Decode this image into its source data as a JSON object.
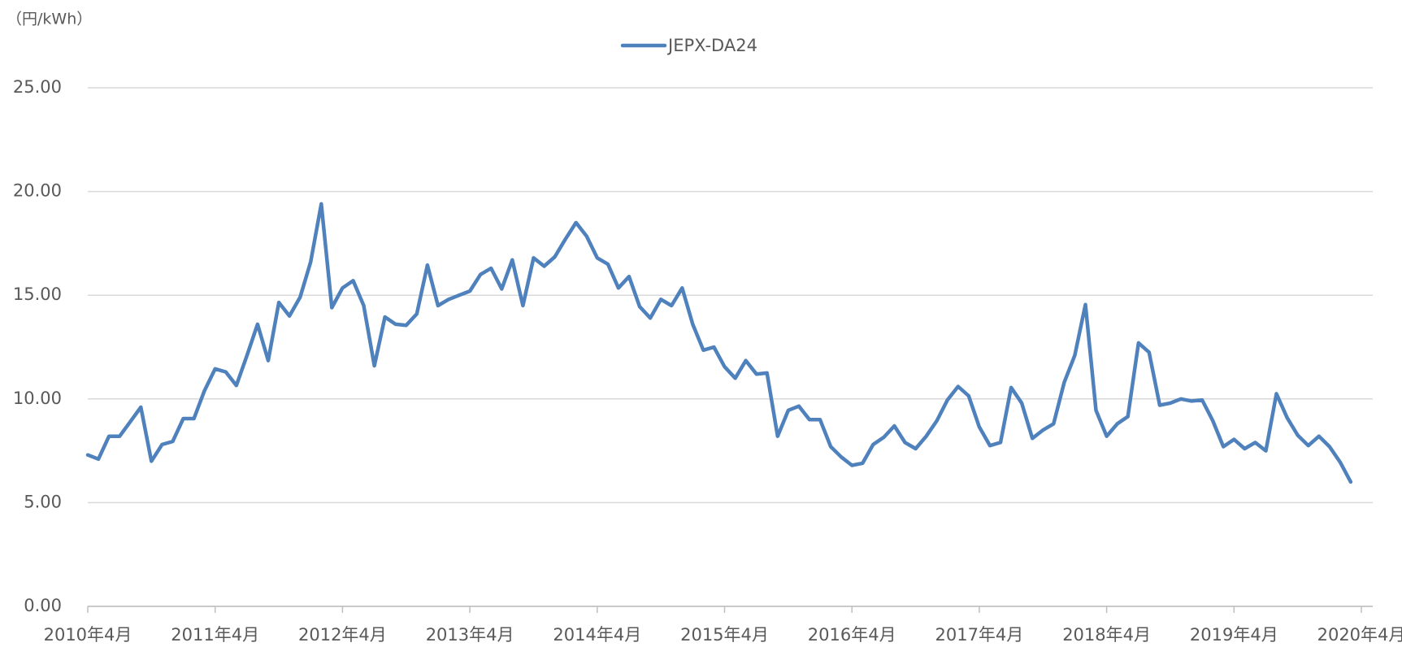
{
  "chart_data": {
    "type": "line",
    "unit_label": "（円/kWh）",
    "categories": [
      "2010年4月",
      null,
      null,
      null,
      null,
      null,
      null,
      null,
      null,
      null,
      null,
      null,
      "2011年4月",
      null,
      null,
      null,
      null,
      null,
      null,
      null,
      null,
      null,
      null,
      null,
      "2012年4月",
      null,
      null,
      null,
      null,
      null,
      null,
      null,
      null,
      null,
      null,
      null,
      "2013年4月",
      null,
      null,
      null,
      null,
      null,
      null,
      null,
      null,
      null,
      null,
      null,
      "2014年4月",
      null,
      null,
      null,
      null,
      null,
      null,
      null,
      null,
      null,
      null,
      null,
      "2015年4月",
      null,
      null,
      null,
      null,
      null,
      null,
      null,
      null,
      null,
      null,
      null,
      "2016年4月",
      null,
      null,
      null,
      null,
      null,
      null,
      null,
      null,
      null,
      null,
      null,
      "2017年4月",
      null,
      null,
      null,
      null,
      null,
      null,
      null,
      null,
      null,
      null,
      null,
      "2018年4月",
      null,
      null,
      null,
      null,
      null,
      null,
      null,
      null,
      null,
      null,
      null,
      "2019年4月",
      null,
      null,
      null,
      null,
      null,
      null,
      null,
      null,
      null,
      null,
      null,
      "2020年4月"
    ],
    "series": [
      {
        "name": "JEPX-DA24",
        "color": "#4f81bd",
        "values": [
          7.3,
          7.1,
          8.2,
          8.2,
          8.9,
          9.6,
          7.0,
          7.8,
          7.95,
          9.05,
          9.05,
          10.4,
          11.45,
          11.3,
          10.65,
          12.1,
          13.6,
          11.85,
          14.65,
          14.0,
          14.9,
          16.6,
          19.4,
          14.4,
          15.35,
          15.7,
          14.5,
          11.6,
          13.95,
          13.6,
          13.55,
          14.1,
          16.45,
          14.5,
          14.8,
          15.0,
          15.2,
          16.0,
          16.3,
          15.3,
          16.7,
          14.5,
          16.8,
          16.4,
          16.85,
          17.7,
          18.5,
          17.85,
          16.8,
          16.5,
          15.35,
          15.9,
          14.45,
          13.9,
          14.8,
          14.5,
          15.35,
          13.6,
          12.35,
          12.5,
          11.55,
          11.0,
          11.85,
          11.2,
          11.25,
          8.2,
          9.45,
          9.65,
          9.0,
          9.0,
          7.7,
          7.2,
          6.8,
          6.9,
          7.8,
          8.15,
          8.7,
          7.9,
          7.6,
          8.2,
          8.95,
          9.95,
          10.6,
          10.15,
          8.65,
          7.75,
          7.9,
          10.55,
          9.8,
          8.1,
          8.5,
          8.8,
          10.8,
          12.1,
          14.55,
          9.45,
          8.2,
          8.8,
          9.15,
          12.7,
          12.25,
          9.7,
          9.8,
          10.0,
          9.9,
          9.95,
          8.95,
          7.7,
          8.05,
          7.6,
          7.9,
          7.5,
          10.25,
          9.1,
          8.25,
          7.75,
          8.2,
          7.7,
          6.95,
          6.0,
          null
        ]
      }
    ],
    "ylim": [
      0,
      25
    ],
    "yticks": [
      {
        "value": 0,
        "label": "0.00"
      },
      {
        "value": 5,
        "label": "5.00"
      },
      {
        "value": 10,
        "label": "10.00"
      },
      {
        "value": 15,
        "label": "15.00"
      },
      {
        "value": 20,
        "label": "20.00"
      },
      {
        "value": 25,
        "label": "25.00"
      }
    ],
    "grid": true,
    "legend": "top"
  }
}
